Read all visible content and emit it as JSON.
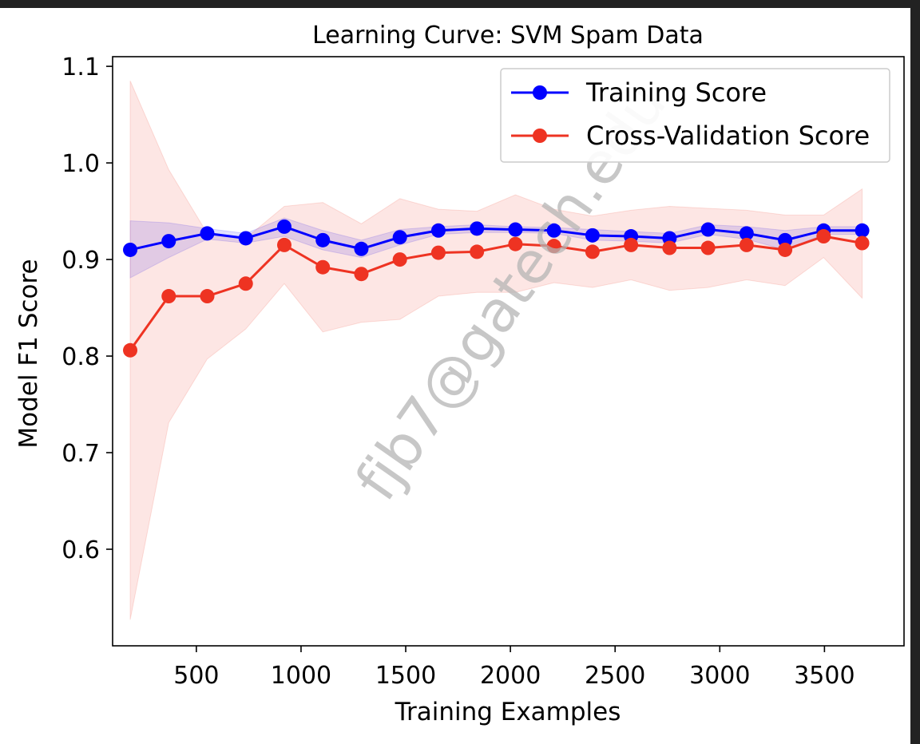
{
  "chart_data": {
    "type": "line",
    "title": "Learning Curve: SVM Spam Data",
    "xlabel": "Training Examples",
    "ylabel": "Model F1 Score",
    "xlim": [
      100,
      3880
    ],
    "ylim": [
      0.5,
      1.11
    ],
    "xticks": [
      500,
      1000,
      1500,
      2000,
      2500,
      3000,
      3500
    ],
    "yticks": [
      0.6,
      0.7,
      0.8,
      0.9,
      1.0,
      1.1
    ],
    "xtick_labels": [
      "500",
      "1000",
      "1500",
      "2000",
      "2500",
      "3000",
      "3500"
    ],
    "ytick_labels": [
      "0.6",
      "0.7",
      "0.8",
      "0.9",
      "1.0",
      "1.1"
    ],
    "grid": false,
    "legend_position": "top-right",
    "x": [
      184,
      368,
      552,
      736,
      920,
      1104,
      1288,
      1472,
      1656,
      1840,
      2024,
      2208,
      2392,
      2576,
      2760,
      2944,
      3128,
      3312,
      3496,
      3680
    ],
    "series": [
      {
        "name": "Training Score",
        "color": "#0000ff",
        "band_color": "#0000ff",
        "values": [
          0.91,
          0.919,
          0.927,
          0.922,
          0.934,
          0.92,
          0.911,
          0.923,
          0.93,
          0.932,
          0.931,
          0.93,
          0.925,
          0.924,
          0.922,
          0.931,
          0.927,
          0.92,
          0.93,
          0.93
        ],
        "upper": [
          0.94,
          0.938,
          0.932,
          0.927,
          0.943,
          0.93,
          0.92,
          0.931,
          0.934,
          0.936,
          0.934,
          0.933,
          0.931,
          0.929,
          0.927,
          0.936,
          0.934,
          0.93,
          0.934,
          0.934
        ],
        "lower": [
          0.881,
          0.902,
          0.921,
          0.917,
          0.924,
          0.91,
          0.902,
          0.915,
          0.926,
          0.928,
          0.928,
          0.927,
          0.92,
          0.919,
          0.917,
          0.926,
          0.921,
          0.91,
          0.926,
          0.926
        ]
      },
      {
        "name": "Cross-Validation Score",
        "color": "#ee3322",
        "band_color": "#ee3322",
        "values": [
          0.806,
          0.862,
          0.862,
          0.875,
          0.915,
          0.892,
          0.885,
          0.9,
          0.907,
          0.908,
          0.916,
          0.914,
          0.908,
          0.915,
          0.912,
          0.912,
          0.915,
          0.91,
          0.924,
          0.917
        ],
        "upper": [
          1.085,
          0.993,
          0.927,
          0.922,
          0.955,
          0.959,
          0.937,
          0.963,
          0.952,
          0.95,
          0.967,
          0.952,
          0.945,
          0.951,
          0.955,
          0.953,
          0.951,
          0.946,
          0.946,
          0.973
        ],
        "lower": [
          0.527,
          0.731,
          0.797,
          0.828,
          0.875,
          0.825,
          0.835,
          0.838,
          0.862,
          0.866,
          0.866,
          0.876,
          0.871,
          0.879,
          0.868,
          0.871,
          0.879,
          0.873,
          0.902,
          0.86
        ]
      }
    ],
    "watermark": "fjb7@gatech.edu"
  }
}
